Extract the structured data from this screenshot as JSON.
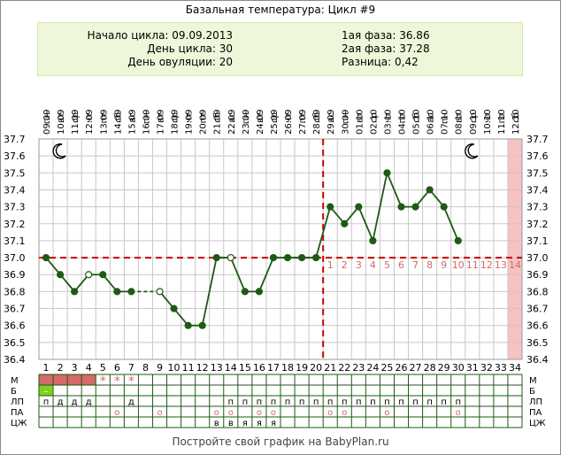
{
  "title": "Базальная температура: Цикл #9",
  "info": {
    "cycle_start": "Начало цикла: 09.09.2013",
    "cycle_day": "День цикла: 30",
    "ovulation_day": "День овуляции: 20",
    "phase1": "1ая фаза: 36.86",
    "phase2": "2ая фаза: 37.28",
    "difference": "Разница: 0,42"
  },
  "footer": "Постройте свой график на BabyPlan.ru",
  "colors": {
    "line": "#1e5a14",
    "grid": "#c8c8c8",
    "coverline": "#cc0000",
    "luteal_highlight": "#f7c2c2",
    "menstruation": "#d46a6a",
    "cervix": "#7ed321",
    "marker": "#d46a6a"
  },
  "icons": {
    "moon": "crescent-moon-icon",
    "star": "star-icon",
    "circle": "circle-marker-icon"
  },
  "chart_data": {
    "type": "line",
    "weekdays": [
      "пн",
      "вт",
      "ср",
      "чт",
      "пт",
      "сб",
      "вс",
      "пн",
      "вт",
      "ср",
      "чт",
      "пт",
      "сб",
      "вс",
      "пн",
      "вт",
      "ср",
      "чт",
      "пт",
      "сб",
      "вс",
      "пн",
      "вт",
      "ср",
      "чт",
      "пт",
      "сб",
      "вс",
      "пн",
      "вт",
      "ср",
      "чт",
      "пт",
      "сб"
    ],
    "dates": [
      "09.09",
      "10.09",
      "11.09",
      "12.09",
      "13.09",
      "14.09",
      "15.09",
      "16.09",
      "17.09",
      "18.09",
      "19.09",
      "20.09",
      "21.09",
      "22.09",
      "23.09",
      "24.09",
      "25.09",
      "26.09",
      "27.09",
      "28.09",
      "29.09",
      "30.09",
      "01.10",
      "02.10",
      "03.10",
      "04.10",
      "05.10",
      "06.10",
      "07.10",
      "08.10",
      "09.10",
      "10.10",
      "11.10",
      "12.10"
    ],
    "days": [
      "1",
      "2",
      "3",
      "4",
      "5",
      "6",
      "7",
      "8",
      "9",
      "10",
      "11",
      "12",
      "13",
      "14",
      "15",
      "16",
      "17",
      "18",
      "19",
      "20",
      "21",
      "22",
      "23",
      "24",
      "25",
      "26",
      "27",
      "28",
      "29",
      "30",
      "31",
      "32",
      "33",
      "34"
    ],
    "temperatures": [
      37.0,
      36.9,
      36.8,
      36.9,
      36.9,
      36.8,
      36.8,
      null,
      36.8,
      36.7,
      36.6,
      36.6,
      37.0,
      37.0,
      36.8,
      36.8,
      37.0,
      37.0,
      37.0,
      37.0,
      37.3,
      37.2,
      37.3,
      37.1,
      37.5,
      37.3,
      37.3,
      37.4,
      37.3,
      37.1,
      null,
      null,
      null,
      null
    ],
    "open_points": [
      4,
      9,
      14
    ],
    "dashed_segments": [
      [
        7,
        9
      ]
    ],
    "ylim": [
      36.4,
      37.7
    ],
    "yticks": [
      "36.4",
      "36.5",
      "36.6",
      "36.7",
      "36.8",
      "36.9",
      "37.0",
      "37.1",
      "37.2",
      "37.3",
      "37.4",
      "37.5",
      "37.6",
      "37.7"
    ],
    "coverline": 37.0,
    "ovulation_day": 20,
    "luteal_labels": [
      "1",
      "2",
      "3",
      "4",
      "5",
      "6",
      "7",
      "8",
      "9",
      "10",
      "11",
      "12",
      "13",
      "14"
    ],
    "highlight_day": 34,
    "moon_days": [
      2,
      31
    ],
    "rows": [
      {
        "label": "М",
        "menstruation_days": [
          1,
          2,
          3,
          4
        ],
        "star_days": [
          5,
          6,
          7
        ],
        "star": "*"
      },
      {
        "label": "Б",
        "cells": {
          "1": "–"
        },
        "green_days": [
          1
        ]
      },
      {
        "label": "ЛП",
        "cells": {
          "1": "п",
          "2": "д",
          "3": "д",
          "4": "д",
          "7": "д",
          "14": "п",
          "15": "п",
          "16": "п",
          "17": "п",
          "18": "п",
          "19": "п",
          "20": "п",
          "21": "п",
          "22": "п",
          "23": "п",
          "24": "п",
          "25": "п",
          "26": "п",
          "27": "п",
          "28": "п",
          "29": "п",
          "30": "п"
        }
      },
      {
        "label": "ПА",
        "cells": {
          "6": "о",
          "9": "о",
          "13": "о",
          "14": "о",
          "16": "о",
          "17": "о",
          "21": "о",
          "22": "о",
          "25": "о",
          "30": "о"
        }
      },
      {
        "label": "ЦЖ",
        "cells": {
          "13": "в",
          "14": "в",
          "15": "я",
          "16": "я",
          "17": "я"
        }
      }
    ]
  }
}
